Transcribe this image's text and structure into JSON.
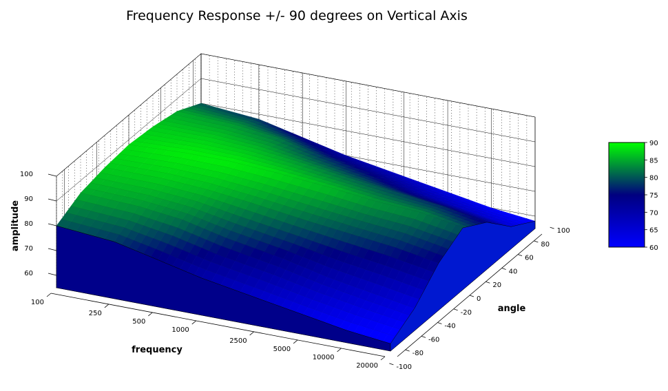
{
  "chart_data": {
    "type": "surface3d",
    "title": "Frequency Response +/- 90 degrees on Vertical Axis",
    "xlabel": "frequency",
    "ylabel": "angle",
    "zlabel": "amplitude",
    "x_scale": "log",
    "x_ticks": [
      100,
      250,
      500,
      1000,
      2500,
      5000,
      10000,
      20000
    ],
    "x_range": [
      100,
      20000
    ],
    "y_ticks": [
      -100,
      -80,
      -60,
      -40,
      -20,
      0,
      20,
      40,
      60,
      80,
      100
    ],
    "y_range": [
      -90,
      90
    ],
    "z_ticks": [
      60,
      70,
      80,
      90,
      100
    ],
    "z_range": [
      55,
      100
    ],
    "colorbar": {
      "ticks": [
        60,
        65,
        70,
        75,
        80,
        85,
        90
      ],
      "range": [
        60,
        90
      ],
      "colors": [
        "#0000ff",
        "#000080",
        "#00ff00"
      ]
    },
    "grid": true,
    "series": [
      {
        "angle": -90,
        "values": [
          80,
          78,
          74,
          70,
          66,
          63,
          60,
          58
        ]
      },
      {
        "angle": -60,
        "values": [
          85,
          84,
          82,
          78,
          74,
          70,
          67,
          64
        ]
      },
      {
        "angle": -30,
        "values": [
          87,
          87,
          86,
          84,
          81,
          79,
          77,
          74
        ]
      },
      {
        "angle": 0,
        "values": [
          88,
          89,
          89,
          88,
          86,
          84,
          83,
          80
        ]
      },
      {
        "angle": 30,
        "values": [
          87,
          87,
          86,
          84,
          81,
          79,
          77,
          74
        ]
      },
      {
        "angle": 60,
        "values": [
          85,
          84,
          82,
          78,
          74,
          70,
          67,
          64
        ]
      },
      {
        "angle": 90,
        "values": [
          80,
          78,
          74,
          70,
          66,
          63,
          60,
          58
        ]
      }
    ]
  }
}
